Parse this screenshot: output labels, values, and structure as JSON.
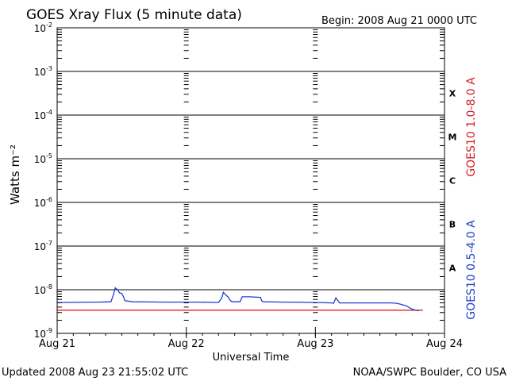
{
  "header": {
    "title": "GOES Xray Flux (5 minute data)",
    "begin": "Begin:  2008 Aug 21 0000 UTC"
  },
  "footer": {
    "updated": "Updated 2008 Aug 23 21:55:02 UTC",
    "source": "NOAA/SWPC Boulder, CO USA"
  },
  "chart_data": {
    "type": "line",
    "title": "GOES Xray Flux (5 minute data)",
    "xlabel": "Universal Time",
    "ylabel": "Watts m⁻²",
    "yscale": "log",
    "ylim": [
      1e-09,
      0.01
    ],
    "xlim": [
      "2008-08-21 00:00",
      "2008-08-24 00:00"
    ],
    "x_ticks": [
      "Aug 21",
      "Aug 22",
      "Aug 23",
      "Aug 24"
    ],
    "y_ticks": [
      {
        "base": "10",
        "exp": "-2"
      },
      {
        "base": "10",
        "exp": "-3"
      },
      {
        "base": "10",
        "exp": "-4"
      },
      {
        "base": "10",
        "exp": "-5"
      },
      {
        "base": "10",
        "exp": "-6"
      },
      {
        "base": "10",
        "exp": "-7"
      },
      {
        "base": "10",
        "exp": "-8"
      },
      {
        "base": "10",
        "exp": "-9"
      }
    ],
    "flare_classes": [
      "X",
      "M",
      "C",
      "B",
      "A"
    ],
    "grid": true,
    "series": [
      {
        "name": "GOES10 1.0-8.0 A",
        "color": "#e02020",
        "x_hours": [
          0,
          53.0,
          53.4,
          68.0
        ],
        "y": [
          3.4e-09,
          3.4e-09,
          3.4e-09,
          3.4e-09
        ]
      },
      {
        "name": "GOES10 0.5-4.0 A",
        "color": "#2040d0",
        "x_hours": [
          0,
          8,
          10.0,
          10.5,
          10.8,
          11.2,
          11.6,
          12.0,
          12.3,
          12.6,
          14,
          20,
          26,
          30,
          30.6,
          30.9,
          31.4,
          31.8,
          32.1,
          32.5,
          34,
          34.4,
          36.0,
          36.4,
          37.8,
          38.0,
          38.3,
          42,
          48,
          51,
          51.4,
          51.8,
          52.2,
          52.5,
          56,
          60,
          62,
          63,
          64,
          65,
          65.6,
          66.0,
          66.6,
          67.2
        ],
        "y": [
          5.1e-09,
          5.2e-09,
          5.3e-09,
          8e-09,
          1.1e-08,
          1e-08,
          8.5e-09,
          8.2e-09,
          7e-09,
          5.6e-09,
          5.3e-09,
          5.2e-09,
          5.2e-09,
          5.1e-09,
          6.5e-09,
          8.7e-09,
          7.5e-09,
          6.8e-09,
          5.8e-09,
          5.3e-09,
          5.3e-09,
          6.9e-09,
          6.9e-09,
          6.8e-09,
          6.7e-09,
          5.6e-09,
          5.3e-09,
          5.2e-09,
          5.1e-09,
          5e-09,
          4.9e-09,
          6.5e-09,
          5.6e-09,
          5e-09,
          5e-09,
          5e-09,
          5e-09,
          4.9e-09,
          4.6e-09,
          4.2e-09,
          3.8e-09,
          3.6e-09,
          3.4e-09,
          3.3e-09
        ]
      }
    ]
  }
}
